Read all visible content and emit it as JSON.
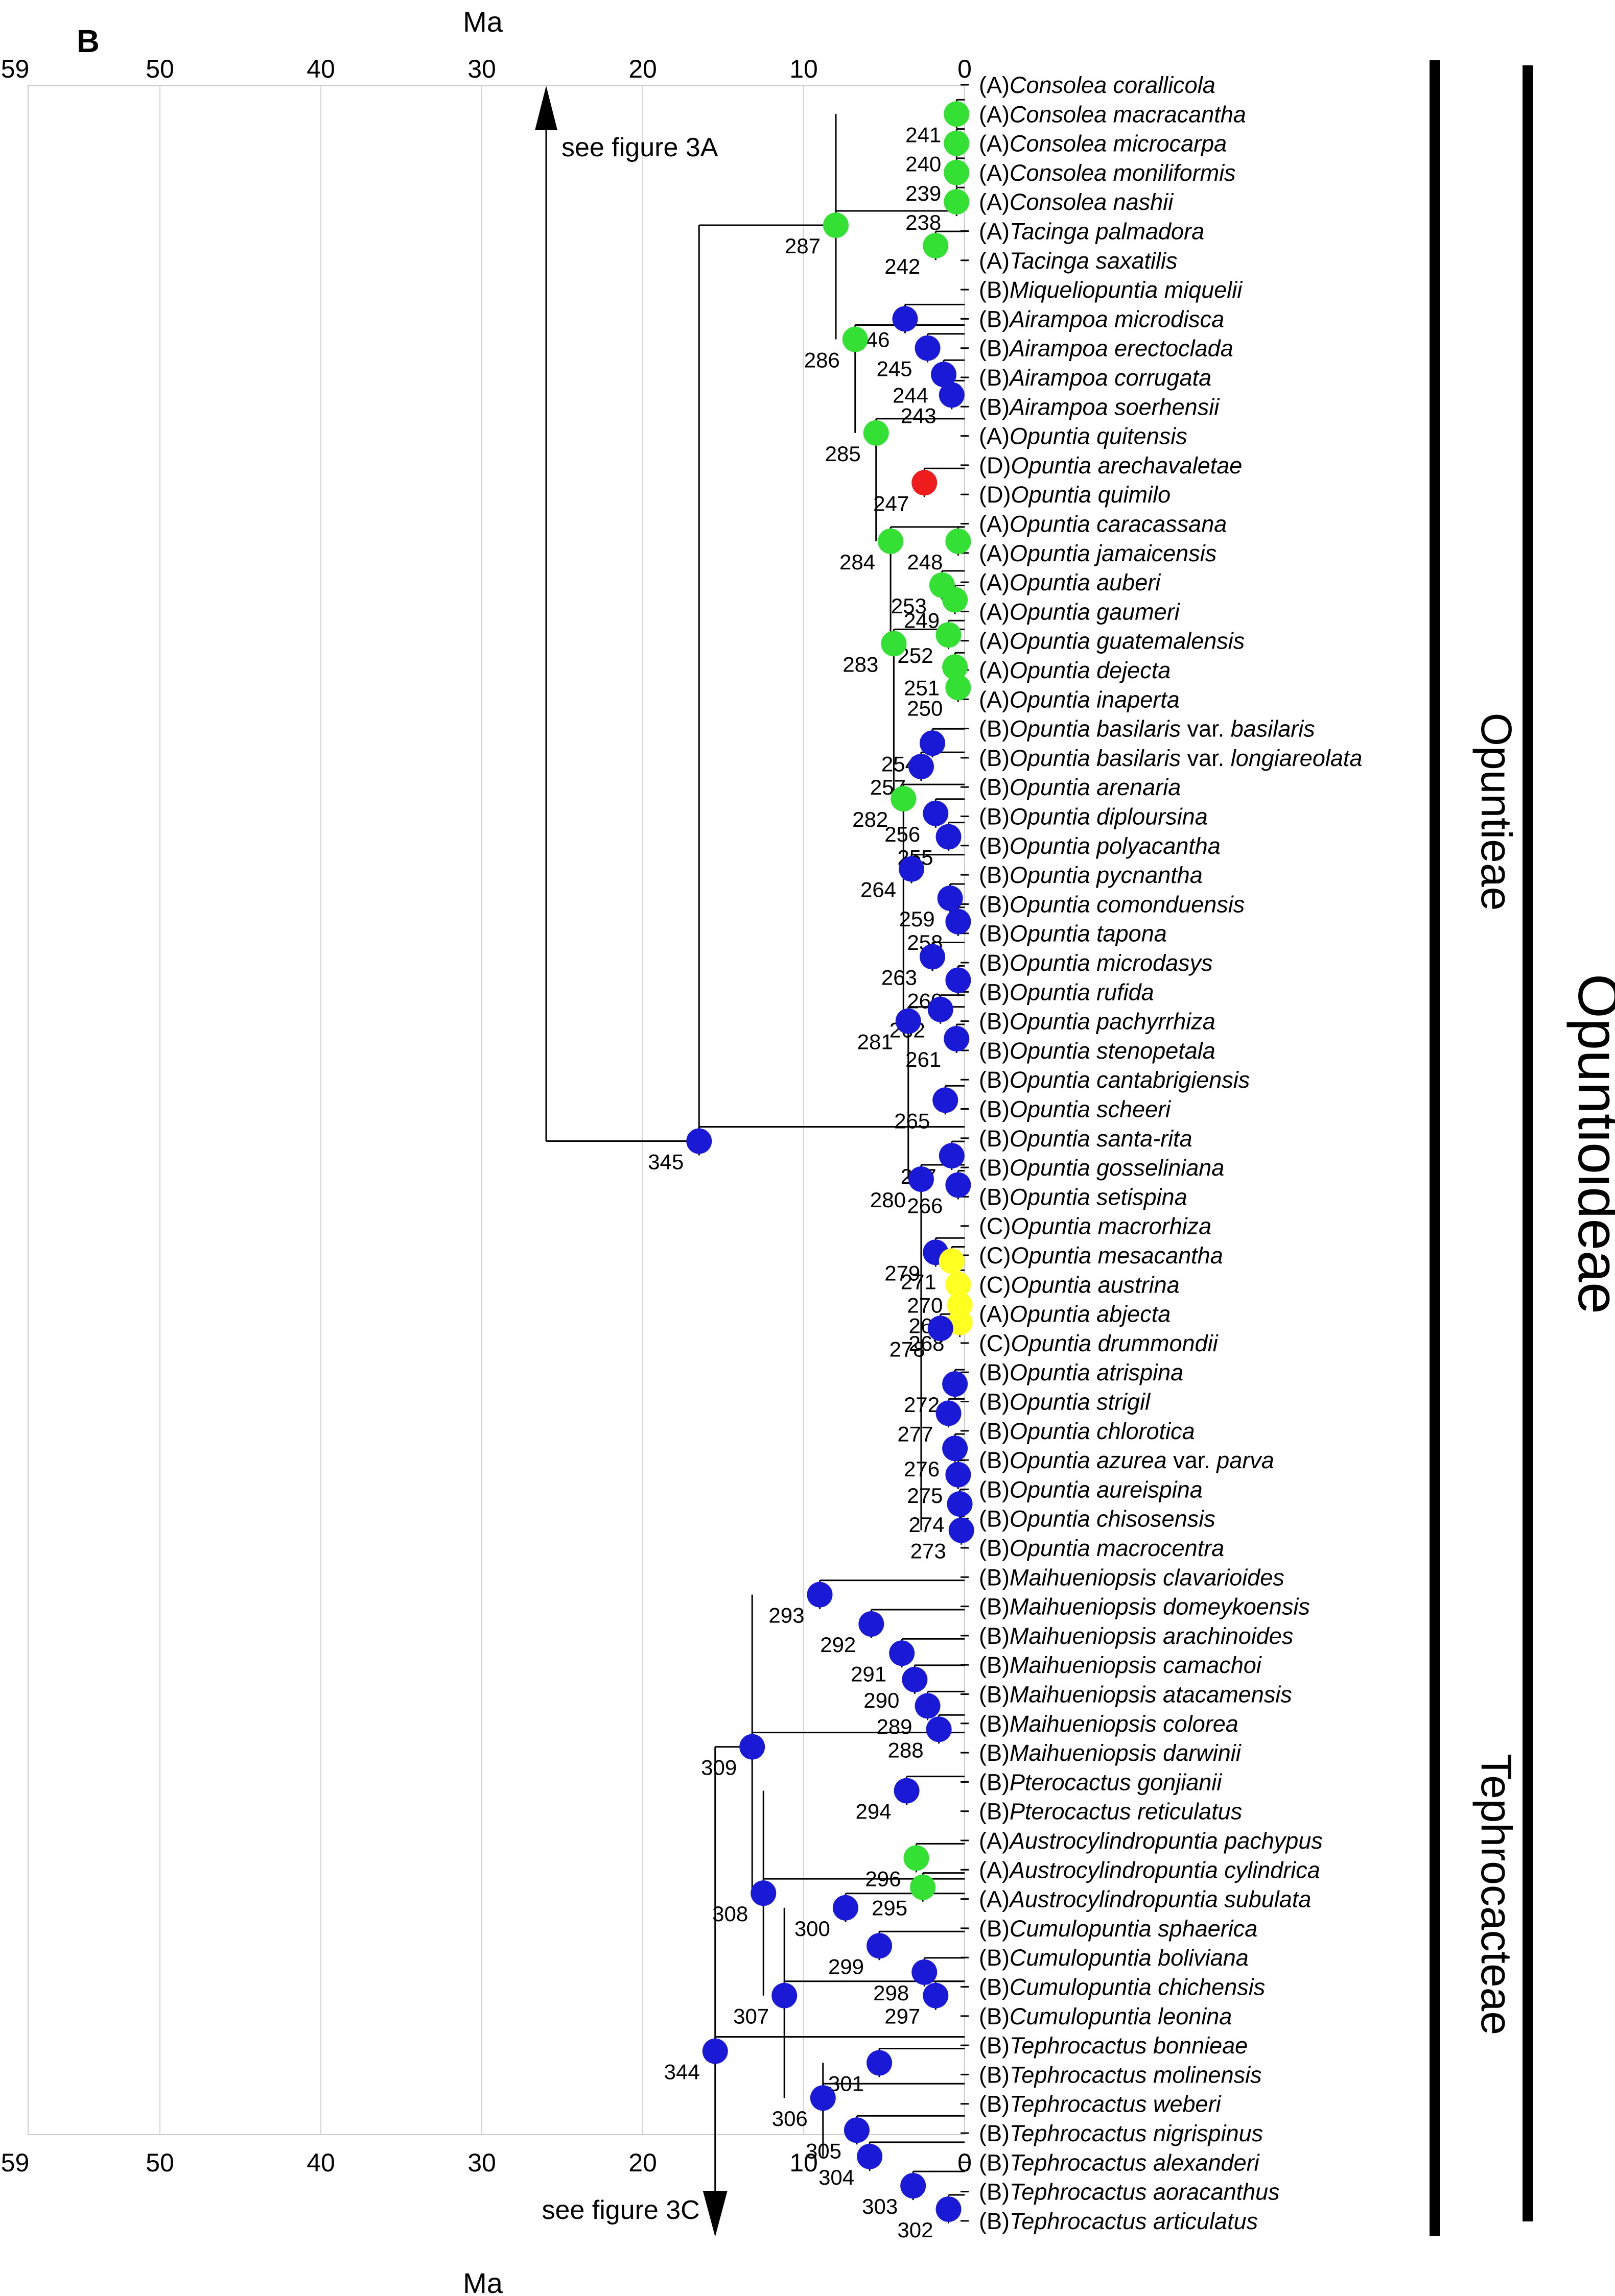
{
  "panel_label": "B",
  "axis": {
    "title": "Ma",
    "ticks": [
      59,
      50,
      40,
      30,
      20,
      10,
      0
    ],
    "min": 0,
    "max": 59
  },
  "taxa": [
    {
      "code": "(A)",
      "name": "Consolea corallicola"
    },
    {
      "code": "(A)",
      "name": "Consolea macracantha"
    },
    {
      "code": "(A)",
      "name": "Consolea microcarpa"
    },
    {
      "code": "(A)",
      "name": "Consolea moniliformis"
    },
    {
      "code": "(A)",
      "name": "Consolea nashii"
    },
    {
      "code": "(A)",
      "name": "Tacinga palmadora"
    },
    {
      "code": "(A)",
      "name": "Tacinga saxatilis"
    },
    {
      "code": "(B)",
      "name": "Miqueliopuntia miquelii"
    },
    {
      "code": "(B)",
      "name": "Airampoa microdisca"
    },
    {
      "code": "(B)",
      "name": "Airampoa erectoclada"
    },
    {
      "code": "(B)",
      "name": "Airampoa corrugata"
    },
    {
      "code": "(B)",
      "name": "Airampoa soerhensii"
    },
    {
      "code": "(A)",
      "name": "Opuntia quitensis"
    },
    {
      "code": "(D)",
      "name": "Opuntia arechavaletae"
    },
    {
      "code": "(D)",
      "name": "Opuntia quimilo"
    },
    {
      "code": "(A)",
      "name": "Opuntia caracassana"
    },
    {
      "code": "(A)",
      "name": "Opuntia jamaicensis"
    },
    {
      "code": "(A)",
      "name": "Opuntia auberi"
    },
    {
      "code": "(A)",
      "name": "Opuntia gaumeri"
    },
    {
      "code": "(A)",
      "name": "Opuntia guatemalensis"
    },
    {
      "code": "(A)",
      "name": "Opuntia dejecta"
    },
    {
      "code": "(A)",
      "name": "Opuntia inaperta"
    },
    {
      "code": "(B)",
      "name": "Opuntia basilaris",
      "suffix": "var.",
      "name2": "basilaris"
    },
    {
      "code": "(B)",
      "name": "Opuntia basilaris",
      "suffix": "var.",
      "name2": "longiareolata"
    },
    {
      "code": "(B)",
      "name": "Opuntia arenaria"
    },
    {
      "code": "(B)",
      "name": "Opuntia diploursina"
    },
    {
      "code": "(B)",
      "name": "Opuntia polyacantha"
    },
    {
      "code": "(B)",
      "name": "Opuntia pycnantha"
    },
    {
      "code": "(B)",
      "name": "Opuntia comonduensis"
    },
    {
      "code": "(B)",
      "name": "Opuntia tapona"
    },
    {
      "code": "(B)",
      "name": "Opuntia microdasys"
    },
    {
      "code": "(B)",
      "name": "Opuntia rufida"
    },
    {
      "code": "(B)",
      "name": "Opuntia pachyrrhiza"
    },
    {
      "code": "(B)",
      "name": "Opuntia stenopetala"
    },
    {
      "code": "(B)",
      "name": "Opuntia cantabrigiensis"
    },
    {
      "code": "(B)",
      "name": "Opuntia scheeri"
    },
    {
      "code": "(B)",
      "name": "Opuntia santa-rita"
    },
    {
      "code": "(B)",
      "name": "Opuntia gosseliniana"
    },
    {
      "code": "(B)",
      "name": "Opuntia setispina"
    },
    {
      "code": "(C)",
      "name": "Opuntia macrorhiza"
    },
    {
      "code": "(C)",
      "name": "Opuntia mesacantha"
    },
    {
      "code": "(C)",
      "name": "Opuntia austrina"
    },
    {
      "code": "(A)",
      "name": "Opuntia abjecta"
    },
    {
      "code": "(C)",
      "name": "Opuntia drummondii"
    },
    {
      "code": "(B)",
      "name": "Opuntia atrispina"
    },
    {
      "code": "(B)",
      "name": "Opuntia strigil"
    },
    {
      "code": "(B)",
      "name": "Opuntia chlorotica"
    },
    {
      "code": "(B)",
      "name": "Opuntia azurea",
      "suffix": "var.",
      "name2": "parva"
    },
    {
      "code": "(B)",
      "name": "Opuntia aureispina"
    },
    {
      "code": "(B)",
      "name": "Opuntia chisosensis"
    },
    {
      "code": "(B)",
      "name": "Opuntia macrocentra"
    },
    {
      "code": "(B)",
      "name": "Maihueniopsis clavarioides"
    },
    {
      "code": "(B)",
      "name": "Maihueniopsis domeykoensis"
    },
    {
      "code": "(B)",
      "name": "Maihueniopsis arachinoides"
    },
    {
      "code": "(B)",
      "name": "Maihueniopsis camachoi"
    },
    {
      "code": "(B)",
      "name": "Maihueniopsis atacamensis"
    },
    {
      "code": "(B)",
      "name": "Maihueniopsis colorea"
    },
    {
      "code": "(B)",
      "name": "Maihueniopsis darwinii"
    },
    {
      "code": "(B)",
      "name": "Pterocactus gonjianii"
    },
    {
      "code": "(B)",
      "name": "Pterocactus reticulatus"
    },
    {
      "code": "(A)",
      "name": "Austrocylindropuntia pachypus"
    },
    {
      "code": "(A)",
      "name": "Austrocylindropuntia cylindrica"
    },
    {
      "code": "(A)",
      "name": "Austrocylindropuntia subulata"
    },
    {
      "code": "(B)",
      "name": "Cumulopuntia sphaerica"
    },
    {
      "code": "(B)",
      "name": "Cumulopuntia boliviana"
    },
    {
      "code": "(B)",
      "name": "Cumulopuntia chichensis"
    },
    {
      "code": "(B)",
      "name": "Cumulopuntia leonina"
    },
    {
      "code": "(B)",
      "name": "Tephrocactus bonnieae"
    },
    {
      "code": "(B)",
      "name": "Tephrocactus molinensis"
    },
    {
      "code": "(B)",
      "name": "Tephrocactus weberi"
    },
    {
      "code": "(B)",
      "name": "Tephrocactus nigrispinus"
    },
    {
      "code": "(B)",
      "name": "Tephrocactus alexanderi"
    },
    {
      "code": "(B)",
      "name": "Tephrocactus aoracanthus"
    },
    {
      "code": "(B)",
      "name": "Tephrocactus articulatus"
    }
  ],
  "colors": {
    "A": "#33e033",
    "B": "#1a1ad6",
    "C": "#ffff22",
    "D": "#ee1c1c"
  },
  "nodes": [
    {
      "label": "241",
      "age": 0.5,
      "row": 1,
      "state": "A"
    },
    {
      "label": "240",
      "age": 0.5,
      "row": 2,
      "state": "A"
    },
    {
      "label": "239",
      "age": 0.5,
      "row": 3,
      "state": "A"
    },
    {
      "label": "238",
      "age": 0.5,
      "row": 4,
      "state": "A"
    },
    {
      "label": "242",
      "age": 1.8,
      "row": 5.5,
      "state": "A"
    },
    {
      "label": "287",
      "age": 8,
      "row": 4.8,
      "state": "A"
    },
    {
      "label": "246",
      "age": 3.7,
      "row": 8,
      "state": "B"
    },
    {
      "label": "245",
      "age": 2.3,
      "row": 9,
      "state": "B"
    },
    {
      "label": "244",
      "age": 1.3,
      "row": 9.9,
      "state": "B"
    },
    {
      "label": "243",
      "age": 0.8,
      "row": 10.6,
      "state": "B"
    },
    {
      "label": "286",
      "age": 6.8,
      "row": 8.7,
      "state": "A"
    },
    {
      "label": "285",
      "age": 5.5,
      "row": 11.9,
      "state": "A"
    },
    {
      "label": "247",
      "age": 2.5,
      "row": 13.6,
      "state": "D"
    },
    {
      "label": "284",
      "age": 4.6,
      "row": 15.6,
      "state": "A"
    },
    {
      "label": "248",
      "age": 0.4,
      "row": 15.6,
      "state": "A"
    },
    {
      "label": "253",
      "age": 1.4,
      "row": 17.1,
      "state": "A"
    },
    {
      "label": "249",
      "age": 0.6,
      "row": 17.6,
      "state": "A"
    },
    {
      "label": "252",
      "age": 1.0,
      "row": 18.8,
      "state": "A"
    },
    {
      "label": "283",
      "age": 4.4,
      "row": 19.1,
      "state": "A"
    },
    {
      "label": "251",
      "age": 0.6,
      "row": 19.9,
      "state": "A"
    },
    {
      "label": "250",
      "age": 0.4,
      "row": 20.6,
      "state": "A"
    },
    {
      "label": "254",
      "age": 2.0,
      "row": 22.5,
      "state": "B"
    },
    {
      "label": "257",
      "age": 2.7,
      "row": 23.3,
      "state": "B"
    },
    {
      "label": "282",
      "age": 3.8,
      "row": 24.4,
      "state": "A"
    },
    {
      "label": "256",
      "age": 1.8,
      "row": 24.9,
      "state": "B"
    },
    {
      "label": "255",
      "age": 1.0,
      "row": 25.7,
      "state": "B"
    },
    {
      "label": "264",
      "age": 3.3,
      "row": 26.8,
      "state": "B"
    },
    {
      "label": "259",
      "age": 0.9,
      "row": 27.8,
      "state": "B"
    },
    {
      "label": "258",
      "age": 0.4,
      "row": 28.6,
      "state": "B"
    },
    {
      "label": "263",
      "age": 2.0,
      "row": 29.8,
      "state": "B"
    },
    {
      "label": "260",
      "age": 0.4,
      "row": 30.6,
      "state": "B"
    },
    {
      "label": "262",
      "age": 1.5,
      "row": 31.6,
      "state": "B"
    },
    {
      "label": "281",
      "age": 3.5,
      "row": 32.0,
      "state": "B"
    },
    {
      "label": "261",
      "age": 0.5,
      "row": 32.6,
      "state": "B"
    },
    {
      "label": "265",
      "age": 1.2,
      "row": 34.7,
      "state": "B"
    },
    {
      "label": "267",
      "age": 0.8,
      "row": 36.6,
      "state": "B"
    },
    {
      "label": "280",
      "age": 2.7,
      "row": 37.4,
      "state": "B"
    },
    {
      "label": "266",
      "age": 0.4,
      "row": 37.6,
      "state": "B"
    },
    {
      "label": "279",
      "age": 1.8,
      "row": 39.9,
      "state": "B"
    },
    {
      "label": "271",
      "age": 0.8,
      "row": 40.2,
      "state": "C"
    },
    {
      "label": "270",
      "age": 0.4,
      "row": 41.0,
      "state": "C"
    },
    {
      "label": "269",
      "age": 0.3,
      "row": 41.7,
      "state": "C"
    },
    {
      "label": "268",
      "age": 0.3,
      "row": 42.3,
      "state": "C"
    },
    {
      "label": "278",
      "age": 1.5,
      "row": 42.5,
      "state": "B"
    },
    {
      "label": "272",
      "age": 0.6,
      "row": 44.4,
      "state": "B"
    },
    {
      "label": "277",
      "age": 1.0,
      "row": 45.4,
      "state": "B"
    },
    {
      "label": "276",
      "age": 0.6,
      "row": 46.6,
      "state": "B"
    },
    {
      "label": "275",
      "age": 0.4,
      "row": 47.5,
      "state": "B"
    },
    {
      "label": "274",
      "age": 0.3,
      "row": 48.5,
      "state": "B"
    },
    {
      "label": "273",
      "age": 0.2,
      "row": 49.4,
      "state": "B"
    },
    {
      "label": "345",
      "age": 16.5,
      "row": 36.1,
      "state": "B"
    },
    {
      "label": "293",
      "age": 9,
      "row": 51.6,
      "state": "B"
    },
    {
      "label": "292",
      "age": 5.8,
      "row": 52.6,
      "state": "B"
    },
    {
      "label": "291",
      "age": 3.9,
      "row": 53.6,
      "state": "B"
    },
    {
      "label": "290",
      "age": 3.1,
      "row": 54.5,
      "state": "B"
    },
    {
      "label": "289",
      "age": 2.3,
      "row": 55.4,
      "state": "B"
    },
    {
      "label": "288",
      "age": 1.6,
      "row": 56.2,
      "state": "B"
    },
    {
      "label": "309",
      "age": 13.2,
      "row": 56.8,
      "state": "B"
    },
    {
      "label": "294",
      "age": 3.6,
      "row": 58.3,
      "state": "B"
    },
    {
      "label": "296",
      "age": 3.0,
      "row": 60.6,
      "state": "A"
    },
    {
      "label": "295",
      "age": 2.6,
      "row": 61.6,
      "state": "A"
    },
    {
      "label": "300",
      "age": 7.4,
      "row": 62.3,
      "state": "B"
    },
    {
      "label": "308",
      "age": 12.5,
      "row": 61.8,
      "state": "B"
    },
    {
      "label": "299",
      "age": 5.3,
      "row": 63.6,
      "state": "B"
    },
    {
      "label": "298",
      "age": 2.5,
      "row": 64.5,
      "state": "B"
    },
    {
      "label": "297",
      "age": 1.8,
      "row": 65.3,
      "state": "B"
    },
    {
      "label": "307",
      "age": 11.2,
      "row": 65.3,
      "state": "B"
    },
    {
      "label": "301",
      "age": 5.3,
      "row": 67.6,
      "state": "B"
    },
    {
      "label": "306",
      "age": 8.8,
      "row": 68.8,
      "state": "B"
    },
    {
      "label": "305",
      "age": 6.7,
      "row": 69.9,
      "state": "B"
    },
    {
      "label": "304",
      "age": 5.9,
      "row": 70.8,
      "state": "B"
    },
    {
      "label": "303",
      "age": 3.2,
      "row": 71.8,
      "state": "B"
    },
    {
      "label": "302",
      "age": 1.0,
      "row": 72.6,
      "state": "B"
    },
    {
      "label": "344",
      "age": 15.5,
      "row": 67.2,
      "state": "B"
    }
  ],
  "arrows": [
    {
      "label": "see figure 3A",
      "age": 26,
      "direction": "up"
    },
    {
      "label": "see figure 3C",
      "age": 15.5,
      "direction": "down"
    }
  ],
  "groups": [
    {
      "label": "Opuntieae",
      "from_row": 0,
      "to_row": 50
    },
    {
      "label": "Tephrocacteae",
      "from_row": 51,
      "to_row": 73
    }
  ],
  "outer_group": {
    "label": "Opuntioideae"
  }
}
